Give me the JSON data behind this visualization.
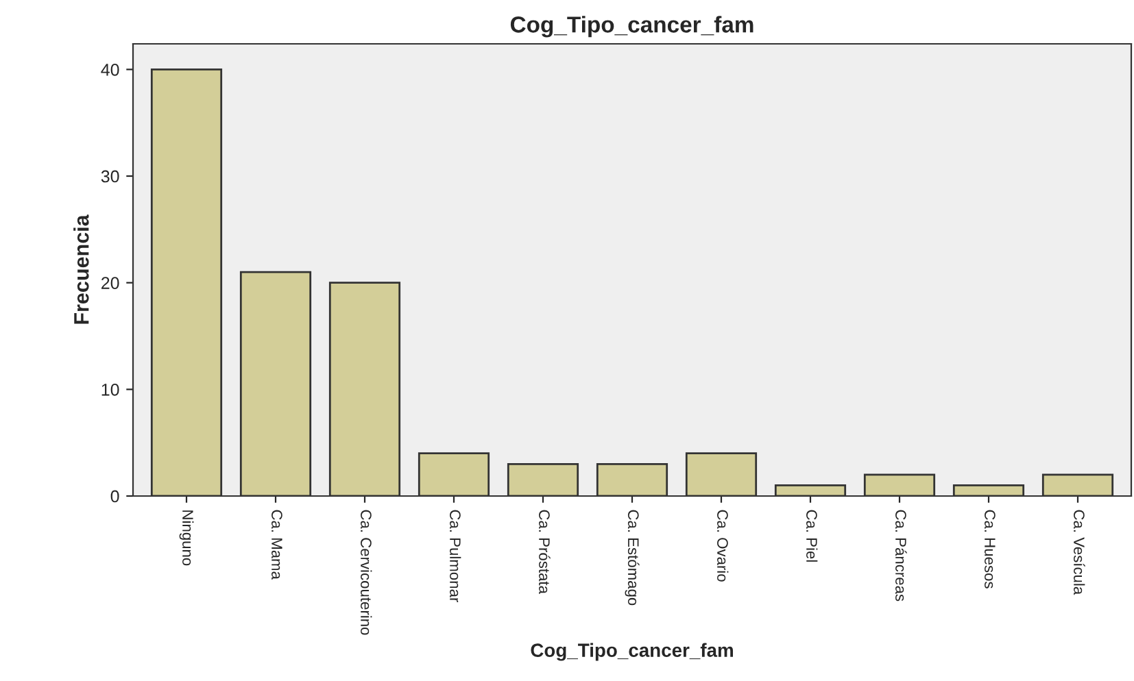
{
  "chart_data": {
    "type": "bar",
    "title": "Cog_Tipo_cancer_fam",
    "xlabel": "Cog_Tipo_cancer_fam",
    "ylabel": "Frecuencia",
    "categories": [
      "Ninguno",
      "Ca. Mama",
      "Ca. Cervicouterino",
      "Ca. Pulmonar",
      "Ca. Próstata",
      "Ca. Estómago",
      "Ca. Ovario",
      "Ca. Piel",
      "Ca. Páncreas",
      "Ca. Huesos",
      "Ca. Vesícula"
    ],
    "values": [
      40,
      21,
      20,
      4,
      3,
      3,
      4,
      1,
      2,
      1,
      2
    ],
    "color": "#d3ce98",
    "ylim": [
      0,
      42.4
    ],
    "yticks": [
      0,
      10,
      20,
      30,
      40
    ],
    "grid": false
  }
}
